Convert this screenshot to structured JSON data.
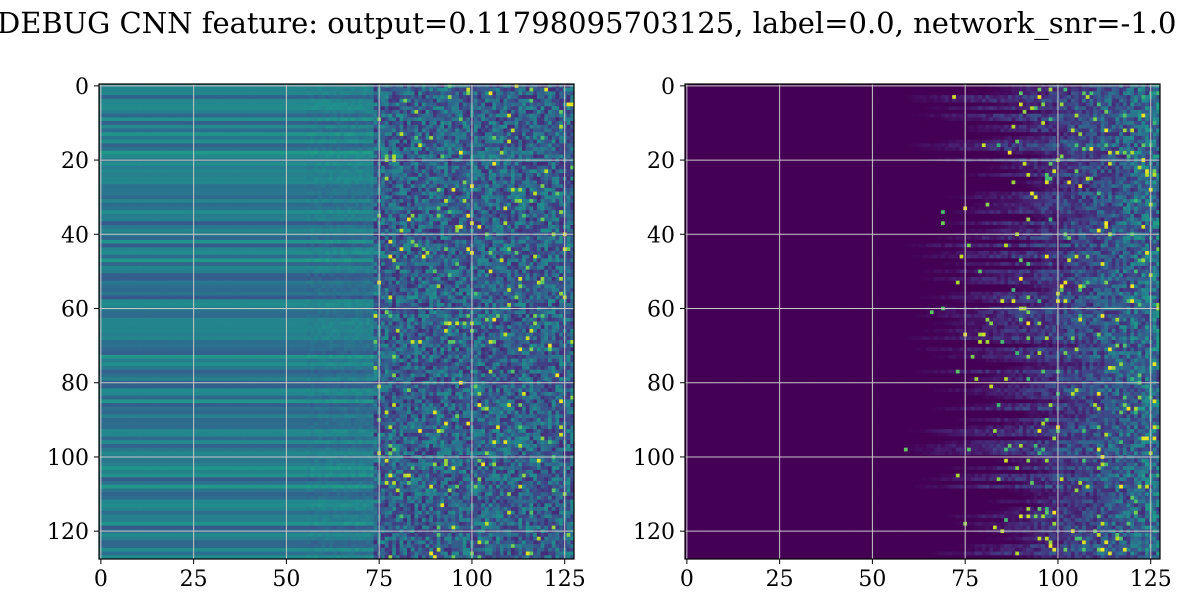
{
  "title": "DEBUG CNN feature: output=0.11798095703125, label=0.0, network_snr=-1.0",
  "colors": {
    "background": "#ffffff",
    "grid": "#c8c8c8",
    "axis": "#000000",
    "colormap": "viridis"
  },
  "chart_data": [
    {
      "type": "heatmap",
      "colormap": "viridis",
      "grid": true,
      "xlim": [
        0,
        127
      ],
      "ylim": [
        127,
        0
      ],
      "xticks": [
        0,
        25,
        50,
        75,
        100,
        125
      ],
      "yticks": [
        0,
        20,
        40,
        60,
        80,
        100,
        120
      ],
      "matrix_size": [
        128,
        128
      ],
      "value_range": [
        0,
        1
      ],
      "description": "Columns 0-75 smooth horizontal banding (mid blue-green), columns 75-127 noisy speckle with bright yellow spots around rows 2, 43, 63, 67, 79, 103"
    },
    {
      "type": "heatmap",
      "colormap": "viridis",
      "grid": true,
      "xlim": [
        0,
        127
      ],
      "ylim": [
        127,
        0
      ],
      "xticks": [
        0,
        25,
        50,
        75,
        100,
        125
      ],
      "yticks": [
        0,
        20,
        40,
        60,
        80,
        100,
        120
      ],
      "matrix_size": [
        128,
        128
      ],
      "value_range": [
        0,
        1
      ],
      "description": "Columns 0-60 near zero (dark purple), increasing noisy activation toward columns 80-127 with bright spots near rows 12, 44, 57, 80, 86, 103, 119"
    }
  ]
}
